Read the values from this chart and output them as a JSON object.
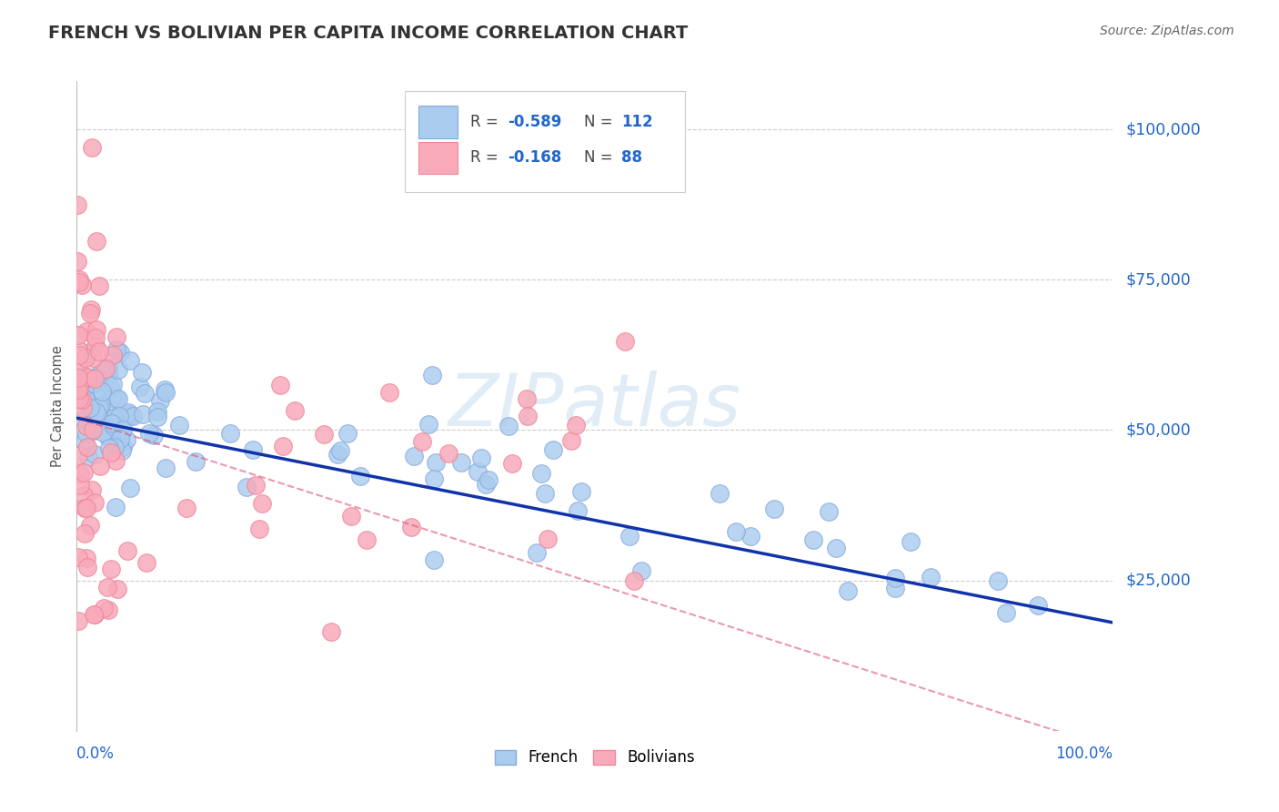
{
  "title": "FRENCH VS BOLIVIAN PER CAPITA INCOME CORRELATION CHART",
  "source": "Source: ZipAtlas.com",
  "ylabel": "Per Capita Income",
  "ytick_labels": [
    "$25,000",
    "$50,000",
    "$75,000",
    "$100,000"
  ],
  "ytick_values": [
    25000,
    50000,
    75000,
    100000
  ],
  "ymin": 0,
  "ymax": 108000,
  "xmin": 0.0,
  "xmax": 1.0,
  "french_color": "#aaccee",
  "bolivian_color": "#f8aabb",
  "french_edge_color": "#88aadd",
  "bolivian_edge_color": "#ee8899",
  "french_line_color": "#1133aa",
  "bolivian_line_color": "#dd5577",
  "background_color": "#ffffff",
  "grid_color": "#cccccc",
  "legend_r_french": "-0.589",
  "legend_n_french": "112",
  "legend_r_bolivian": "-0.168",
  "legend_n_bolivian": "88",
  "title_color": "#333333",
  "axis_label_color": "#2266cc",
  "source_color": "#666666",
  "ylabel_color": "#555555",
  "watermark_color": "#c8ddf0",
  "watermark_alpha": 0.55
}
